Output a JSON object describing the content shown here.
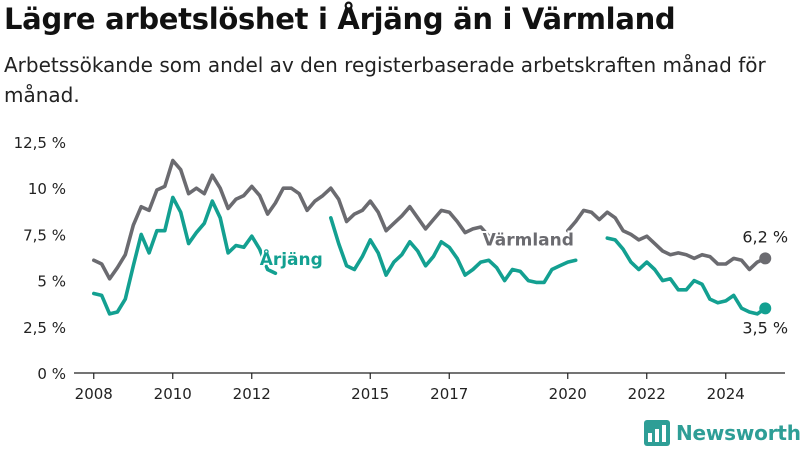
{
  "title": "Lägre arbetslöshet i Årjäng än i Värmland",
  "subtitle": "Arbetssökande som andel av den registerbaserade arbetskraften månad för månad.",
  "brand": "Newsworthy",
  "colors": {
    "varmland": "#6b6b70",
    "arjang": "#13a091",
    "axis": "#222222",
    "grid": "#dddddd",
    "brand": "#2e9e96"
  },
  "chart_data": {
    "type": "line",
    "ylim": [
      0,
      12.5
    ],
    "yticks": [
      "0 %",
      "2,5 %",
      "5 %",
      "7,5 %",
      "10 %",
      "12,5 %"
    ],
    "ytick_values": [
      0,
      2.5,
      5,
      7.5,
      10,
      12.5
    ],
    "xlim": [
      2007.5,
      2025.5
    ],
    "xticks": [
      "2008",
      "2010",
      "2012",
      "2015",
      "2017",
      "2020",
      "2022",
      "2024"
    ],
    "xtick_values": [
      2008,
      2010,
      2012,
      2015,
      2017,
      2020,
      2022,
      2024
    ],
    "series": [
      {
        "name": "Värmland",
        "end_label": "6,2 %",
        "x": [
          2008.0,
          2008.2,
          2008.4,
          2008.6,
          2008.8,
          2009.0,
          2009.2,
          2009.4,
          2009.6,
          2009.8,
          2010.0,
          2010.2,
          2010.4,
          2010.6,
          2010.8,
          2011.0,
          2011.2,
          2011.4,
          2011.6,
          2011.8,
          2012.0,
          2012.2,
          2012.4,
          2012.6,
          2012.8,
          2013.0,
          2013.2,
          2013.4,
          2013.6,
          2013.8,
          2014.0,
          2014.2,
          2014.4,
          2014.6,
          2014.8,
          2015.0,
          2015.2,
          2015.4,
          2015.6,
          2015.8,
          2016.0,
          2016.2,
          2016.4,
          2016.6,
          2016.8,
          2017.0,
          2017.2,
          2017.4,
          2017.6,
          2017.8,
          2018.0,
          2018.2,
          2018.4,
          2018.6,
          2018.8,
          2019.0,
          2019.2,
          2019.4,
          2019.6,
          2019.8,
          2020.0,
          2020.2,
          2020.4,
          2020.6,
          2020.8,
          2021.0,
          2021.2,
          2021.4,
          2021.6,
          2021.8,
          2022.0,
          2022.2,
          2022.4,
          2022.6,
          2022.8,
          2023.0,
          2023.2,
          2023.4,
          2023.6,
          2023.8,
          2024.0,
          2024.2,
          2024.4,
          2024.6,
          2024.8,
          2025.0
        ],
        "values": [
          6.1,
          5.9,
          5.1,
          5.7,
          6.4,
          8.0,
          9.0,
          8.8,
          9.9,
          10.1,
          11.5,
          11.0,
          9.7,
          10.0,
          9.7,
          10.7,
          10.0,
          8.9,
          9.4,
          9.6,
          10.1,
          9.6,
          8.6,
          9.2,
          10.0,
          10.0,
          9.7,
          8.8,
          9.3,
          9.6,
          10.0,
          9.4,
          8.2,
          8.6,
          8.8,
          9.3,
          8.7,
          7.7,
          8.1,
          8.5,
          9.0,
          8.4,
          7.8,
          8.3,
          8.8,
          8.7,
          8.2,
          7.6,
          7.8,
          7.9,
          7.4,
          null,
          null,
          null,
          null,
          null,
          null,
          null,
          null,
          null,
          7.7,
          8.2,
          8.8,
          8.7,
          8.3,
          8.7,
          8.4,
          7.7,
          7.5,
          7.2,
          7.4,
          7.0,
          6.6,
          6.4,
          6.5,
          6.4,
          6.2,
          6.4,
          6.3,
          5.9,
          5.9,
          6.2,
          6.1,
          5.6,
          6.0,
          6.2
        ]
      },
      {
        "name": "Årjäng",
        "end_label": "3,5 %",
        "x": [
          2008.0,
          2008.2,
          2008.4,
          2008.6,
          2008.8,
          2009.0,
          2009.2,
          2009.4,
          2009.6,
          2009.8,
          2010.0,
          2010.2,
          2010.4,
          2010.6,
          2010.8,
          2011.0,
          2011.2,
          2011.4,
          2011.6,
          2011.8,
          2012.0,
          2012.2,
          2012.4,
          2012.6,
          2012.8,
          2013.0,
          2013.2,
          2013.4,
          2013.6,
          2013.8,
          2014.0,
          2014.2,
          2014.4,
          2014.6,
          2014.8,
          2015.0,
          2015.2,
          2015.4,
          2015.6,
          2015.8,
          2016.0,
          2016.2,
          2016.4,
          2016.6,
          2016.8,
          2017.0,
          2017.2,
          2017.4,
          2017.6,
          2017.8,
          2018.0,
          2018.2,
          2018.4,
          2018.6,
          2018.8,
          2019.0,
          2019.2,
          2019.4,
          2019.6,
          2019.8,
          2020.0,
          2020.2,
          2020.4,
          2020.6,
          2020.8,
          2021.0,
          2021.2,
          2021.4,
          2021.6,
          2021.8,
          2022.0,
          2022.2,
          2022.4,
          2022.6,
          2022.8,
          2023.0,
          2023.2,
          2023.4,
          2023.6,
          2023.8,
          2024.0,
          2024.2,
          2024.4,
          2024.6,
          2024.8,
          2025.0
        ],
        "values": [
          4.3,
          4.2,
          3.2,
          3.3,
          4.0,
          5.8,
          7.5,
          6.5,
          7.7,
          7.7,
          9.5,
          8.7,
          7.0,
          7.6,
          8.1,
          9.3,
          8.4,
          6.5,
          6.9,
          6.8,
          7.4,
          6.7,
          5.6,
          5.4,
          null,
          null,
          null,
          null,
          null,
          null,
          8.4,
          7.0,
          5.8,
          5.6,
          6.3,
          7.2,
          6.5,
          5.3,
          6.0,
          6.4,
          7.1,
          6.6,
          5.8,
          6.3,
          7.1,
          6.8,
          6.2,
          5.3,
          5.6,
          6.0,
          6.1,
          5.7,
          5.0,
          5.6,
          5.5,
          5.0,
          4.9,
          4.9,
          5.6,
          5.8,
          6.0,
          6.1,
          null,
          null,
          null,
          7.3,
          7.2,
          6.7,
          6.0,
          5.6,
          6.0,
          5.6,
          5.0,
          5.1,
          4.5,
          4.5,
          5.0,
          4.8,
          4.0,
          3.8,
          3.9,
          4.2,
          3.5,
          3.3,
          3.2,
          3.5
        ]
      }
    ],
    "annotations": [
      {
        "text": "Värmland",
        "series": 0
      },
      {
        "text": "Årjäng",
        "series": 1
      }
    ],
    "grid": false,
    "legend": "inline labels on lines"
  }
}
